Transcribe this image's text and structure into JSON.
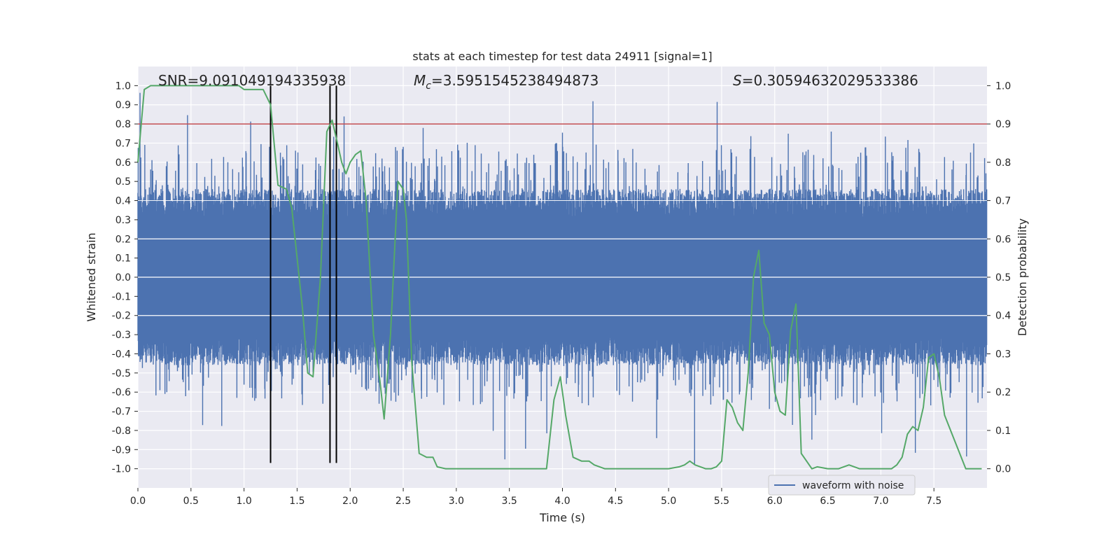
{
  "chart_data": {
    "type": "line",
    "title": "stats at each timestep for test data 24911 [signal=1]",
    "xlabel": "Time (s)",
    "ylabel": "Whitened strain",
    "y2label": "Detection probability",
    "xlim": [
      0,
      8
    ],
    "ylim": [
      -1.1,
      1.1
    ],
    "y2lim": [
      -0.05,
      1.05
    ],
    "xticks": [
      "0.0",
      "0.5",
      "1.0",
      "1.5",
      "2.0",
      "2.5",
      "3.0",
      "3.5",
      "4.0",
      "4.5",
      "5.0",
      "5.5",
      "6.0",
      "6.5",
      "7.0",
      "7.5"
    ],
    "yticks": [
      "1.0",
      "0.9",
      "0.8",
      "0.7",
      "0.6",
      "0.5",
      "0.4",
      "0.3",
      "0.2",
      "0.1",
      "0.0",
      "-0.1",
      "-0.2",
      "-0.3",
      "-0.4",
      "-0.5",
      "-0.6",
      "-0.7",
      "-0.8",
      "-0.9",
      "-1.0"
    ],
    "y2ticks": [
      "1.0",
      "0.9",
      "0.8",
      "0.7",
      "0.6",
      "0.5",
      "0.4",
      "0.3",
      "0.2",
      "0.1",
      "0.0"
    ],
    "grid": true,
    "legend_position": "bottom-right",
    "annotations": {
      "snr_label": "SNR=9.091049194335938",
      "mc_label": "=3.5951545238494873",
      "mc_symbol": "M",
      "mc_sub": "c",
      "s_symbol": "S",
      "s_label": "=0.30594632029533386"
    },
    "threshold": 0.9,
    "vertical_markers": [
      1.25,
      1.81,
      1.87
    ],
    "series": [
      {
        "name": "waveform with noise",
        "axis": "left",
        "kind": "noise-band",
        "envelope_typical": 0.45,
        "envelope_peak": 0.98,
        "color": "#4c72b0"
      },
      {
        "axis": "right",
        "color": "#55a868",
        "x": [
          0.0,
          0.06,
          0.12,
          0.25,
          0.5,
          0.75,
          0.95,
          1.0,
          1.05,
          1.12,
          1.18,
          1.25,
          1.32,
          1.4,
          1.45,
          1.5,
          1.55,
          1.6,
          1.65,
          1.72,
          1.78,
          1.83,
          1.88,
          1.92,
          1.96,
          2.0,
          2.05,
          2.1,
          2.15,
          2.22,
          2.28,
          2.32,
          2.38,
          2.45,
          2.5,
          2.53,
          2.58,
          2.65,
          2.72,
          2.78,
          2.82,
          2.9,
          3.0,
          3.3,
          3.6,
          3.8,
          3.85,
          3.92,
          3.98,
          4.03,
          4.1,
          4.18,
          4.25,
          4.3,
          4.4,
          4.6,
          4.8,
          5.0,
          5.1,
          5.15,
          5.2,
          5.25,
          5.3,
          5.35,
          5.4,
          5.45,
          5.5,
          5.55,
          5.6,
          5.65,
          5.7,
          5.75,
          5.8,
          5.85,
          5.9,
          5.95,
          6.0,
          6.05,
          6.1,
          6.15,
          6.2,
          6.25,
          6.3,
          6.35,
          6.4,
          6.5,
          6.6,
          6.7,
          6.8,
          7.0,
          7.1,
          7.15,
          7.2,
          7.25,
          7.3,
          7.35,
          7.4,
          7.45,
          7.5,
          7.55,
          7.6,
          7.7,
          7.8,
          7.9,
          7.95
        ],
        "y": [
          0.8,
          0.99,
          1.0,
          1.0,
          1.0,
          1.0,
          1.0,
          0.99,
          0.99,
          0.99,
          0.99,
          0.95,
          0.74,
          0.73,
          0.68,
          0.55,
          0.42,
          0.25,
          0.24,
          0.5,
          0.88,
          0.91,
          0.85,
          0.8,
          0.77,
          0.8,
          0.82,
          0.83,
          0.7,
          0.35,
          0.23,
          0.13,
          0.35,
          0.75,
          0.73,
          0.65,
          0.28,
          0.04,
          0.03,
          0.03,
          0.005,
          0.0,
          0.0,
          0.0,
          0.0,
          0.0,
          0.0,
          0.18,
          0.24,
          0.14,
          0.03,
          0.02,
          0.02,
          0.01,
          0.0,
          0.0,
          0.0,
          0.0,
          0.005,
          0.01,
          0.02,
          0.01,
          0.005,
          0.0,
          0.0,
          0.005,
          0.02,
          0.18,
          0.16,
          0.12,
          0.1,
          0.25,
          0.5,
          0.57,
          0.38,
          0.35,
          0.2,
          0.15,
          0.14,
          0.36,
          0.43,
          0.04,
          0.02,
          0.0,
          0.005,
          0.0,
          0.0,
          0.01,
          0.0,
          0.0,
          0.0,
          0.01,
          0.03,
          0.09,
          0.11,
          0.1,
          0.16,
          0.29,
          0.3,
          0.24,
          0.14,
          0.07,
          0.0,
          0.0,
          0.0
        ]
      }
    ]
  }
}
